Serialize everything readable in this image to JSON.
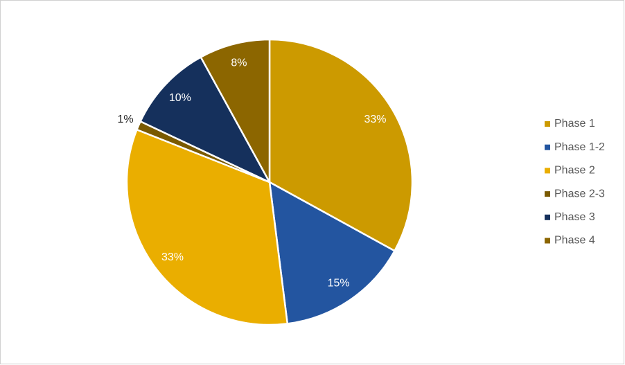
{
  "chart_data": {
    "type": "pie",
    "categories": [
      "Phase 1",
      "Phase 1-2",
      "Phase 2",
      "Phase 2-3",
      "Phase 3",
      "Phase 4"
    ],
    "values": [
      33,
      15,
      33,
      1,
      10,
      8
    ],
    "value_labels": [
      "33%",
      "15%",
      "33%",
      "1%",
      "10%",
      "8%"
    ],
    "colors": [
      "#cc9a00",
      "#2355a0",
      "#eaae00",
      "#7a5a00",
      "#15305c",
      "#8c6600"
    ],
    "legend": "right"
  }
}
